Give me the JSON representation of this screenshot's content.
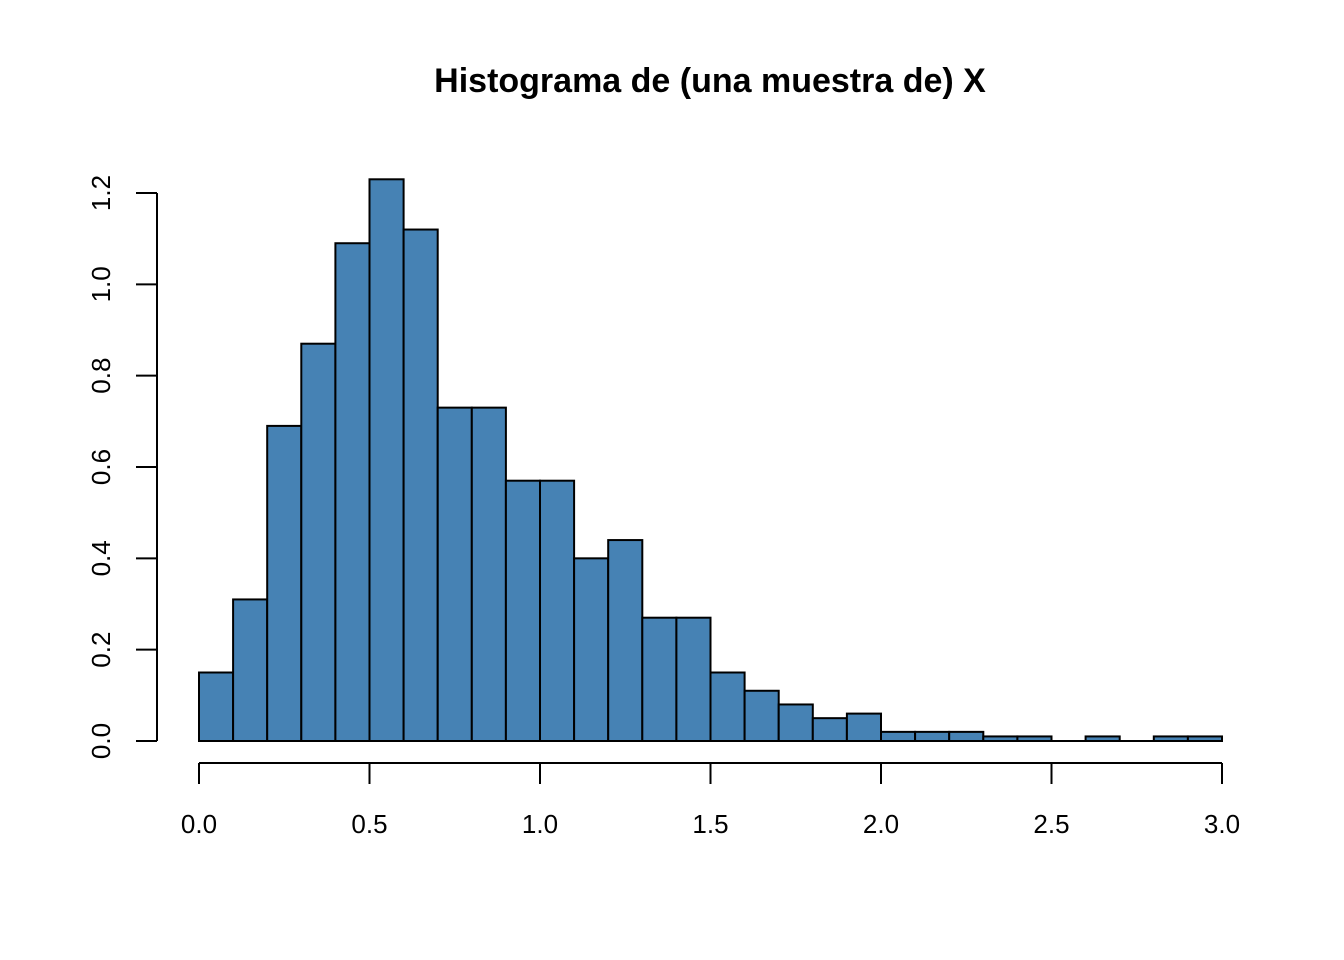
{
  "chart_data": {
    "type": "bar",
    "title": "Histograma de (una muestra de) X",
    "xlabel": "",
    "ylabel": "",
    "bar_color": "#4682B4",
    "xlim": [
      0,
      3.0
    ],
    "ylim": [
      0,
      1.2
    ],
    "bin_width": 0.1,
    "bin_starts": [
      0.0,
      0.1,
      0.2,
      0.3,
      0.4,
      0.5,
      0.6,
      0.7,
      0.8,
      0.9,
      1.0,
      1.1,
      1.2,
      1.3,
      1.4,
      1.5,
      1.6,
      1.7,
      1.8,
      1.9,
      2.0,
      2.1,
      2.2,
      2.3,
      2.4,
      2.5,
      2.6,
      2.7,
      2.8,
      2.9
    ],
    "values": [
      0.15,
      0.31,
      0.69,
      0.87,
      1.09,
      1.23,
      1.12,
      0.73,
      0.73,
      0.57,
      0.57,
      0.4,
      0.44,
      0.27,
      0.27,
      0.15,
      0.11,
      0.08,
      0.05,
      0.06,
      0.02,
      0.02,
      0.02,
      0.01,
      0.01,
      0.0,
      0.01,
      0.0,
      0.01,
      0.01
    ],
    "x_ticks": [
      0.0,
      0.5,
      1.0,
      1.5,
      2.0,
      2.5,
      3.0
    ],
    "x_tick_labels": [
      "0.0",
      "0.5",
      "1.0",
      "1.5",
      "2.0",
      "2.5",
      "3.0"
    ],
    "y_ticks": [
      0.0,
      0.2,
      0.4,
      0.6,
      0.8,
      1.0,
      1.2
    ],
    "y_tick_labels": [
      "0.0",
      "0.2",
      "0.4",
      "0.6",
      "0.8",
      "1.0",
      "1.2"
    ],
    "grid": false,
    "legend": "none"
  }
}
